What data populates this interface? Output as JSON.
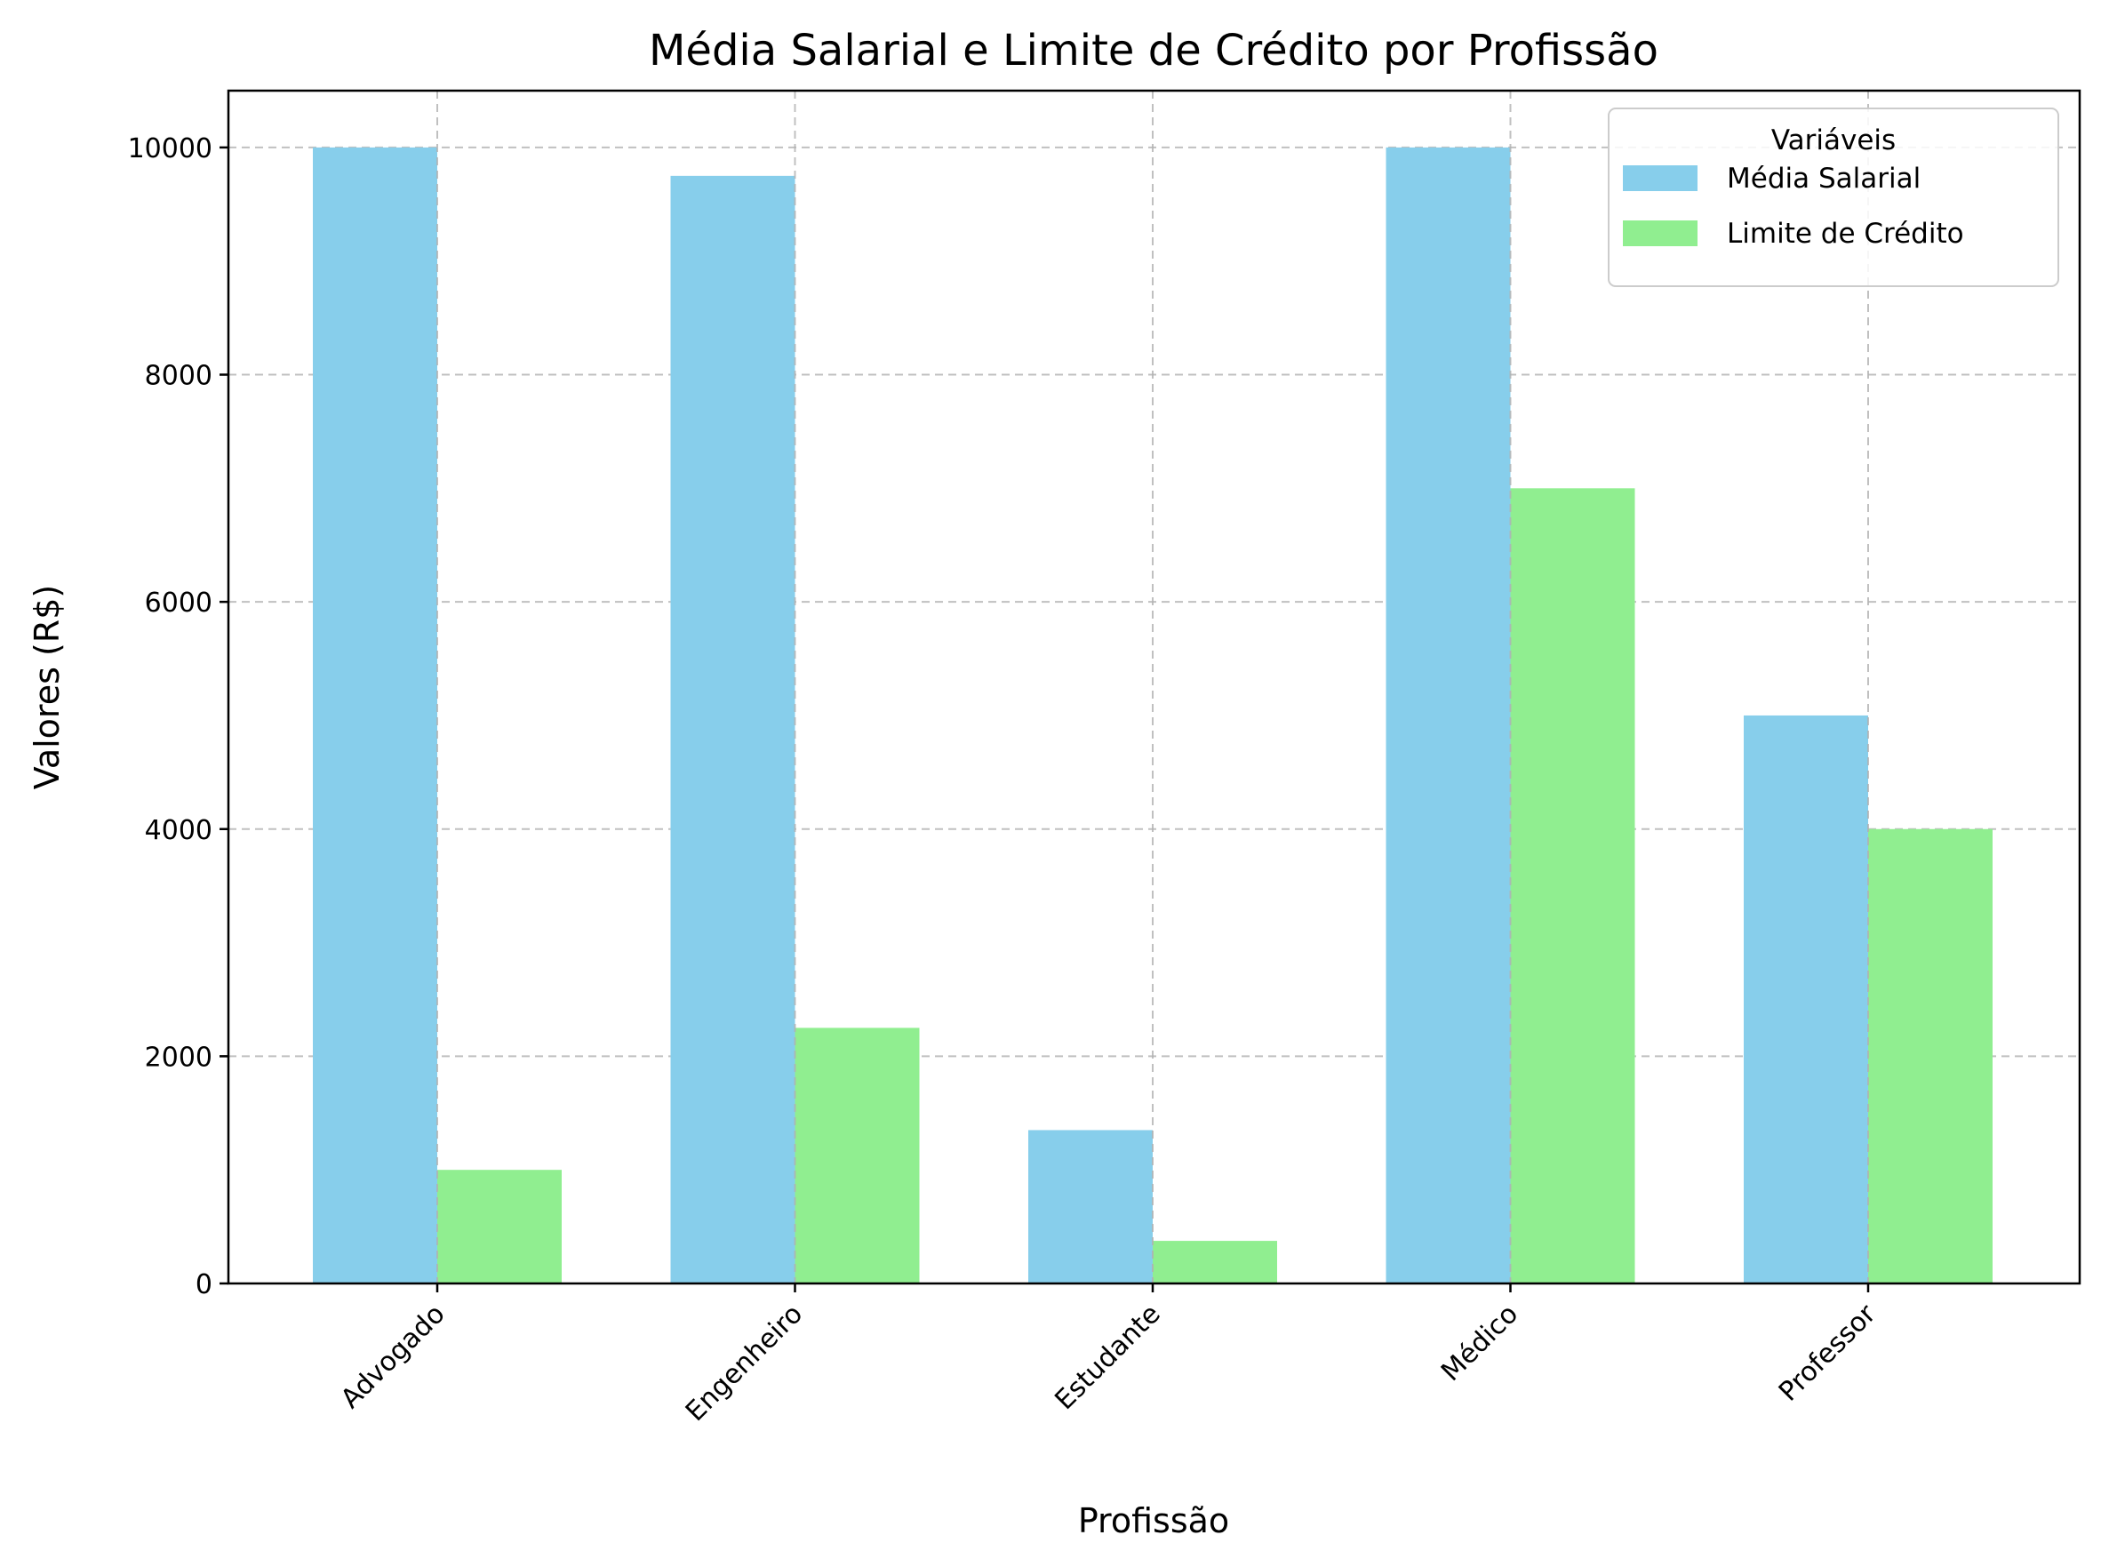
{
  "chart_data": {
    "type": "bar",
    "title": "Média Salarial e Limite de Crédito por Profissão",
    "xlabel": "Profissão",
    "ylabel": "Valores (R$)",
    "categories": [
      "Advogado",
      "Engenheiro",
      "Estudante",
      "Médico",
      "Professor"
    ],
    "series": [
      {
        "name": "Média Salarial",
        "color": "#87ceeb",
        "values": [
          10000,
          9750,
          1350,
          10000,
          5000
        ]
      },
      {
        "name": "Limite de Crédito",
        "color": "#90ee90",
        "values": [
          1000,
          2250,
          375,
          7000,
          4000
        ]
      }
    ],
    "ylim": [
      0,
      10500
    ],
    "yticks": [
      0,
      2000,
      4000,
      6000,
      8000,
      10000
    ],
    "grid": true,
    "legend": {
      "title": "Variáveis",
      "placement": "top-right"
    }
  }
}
